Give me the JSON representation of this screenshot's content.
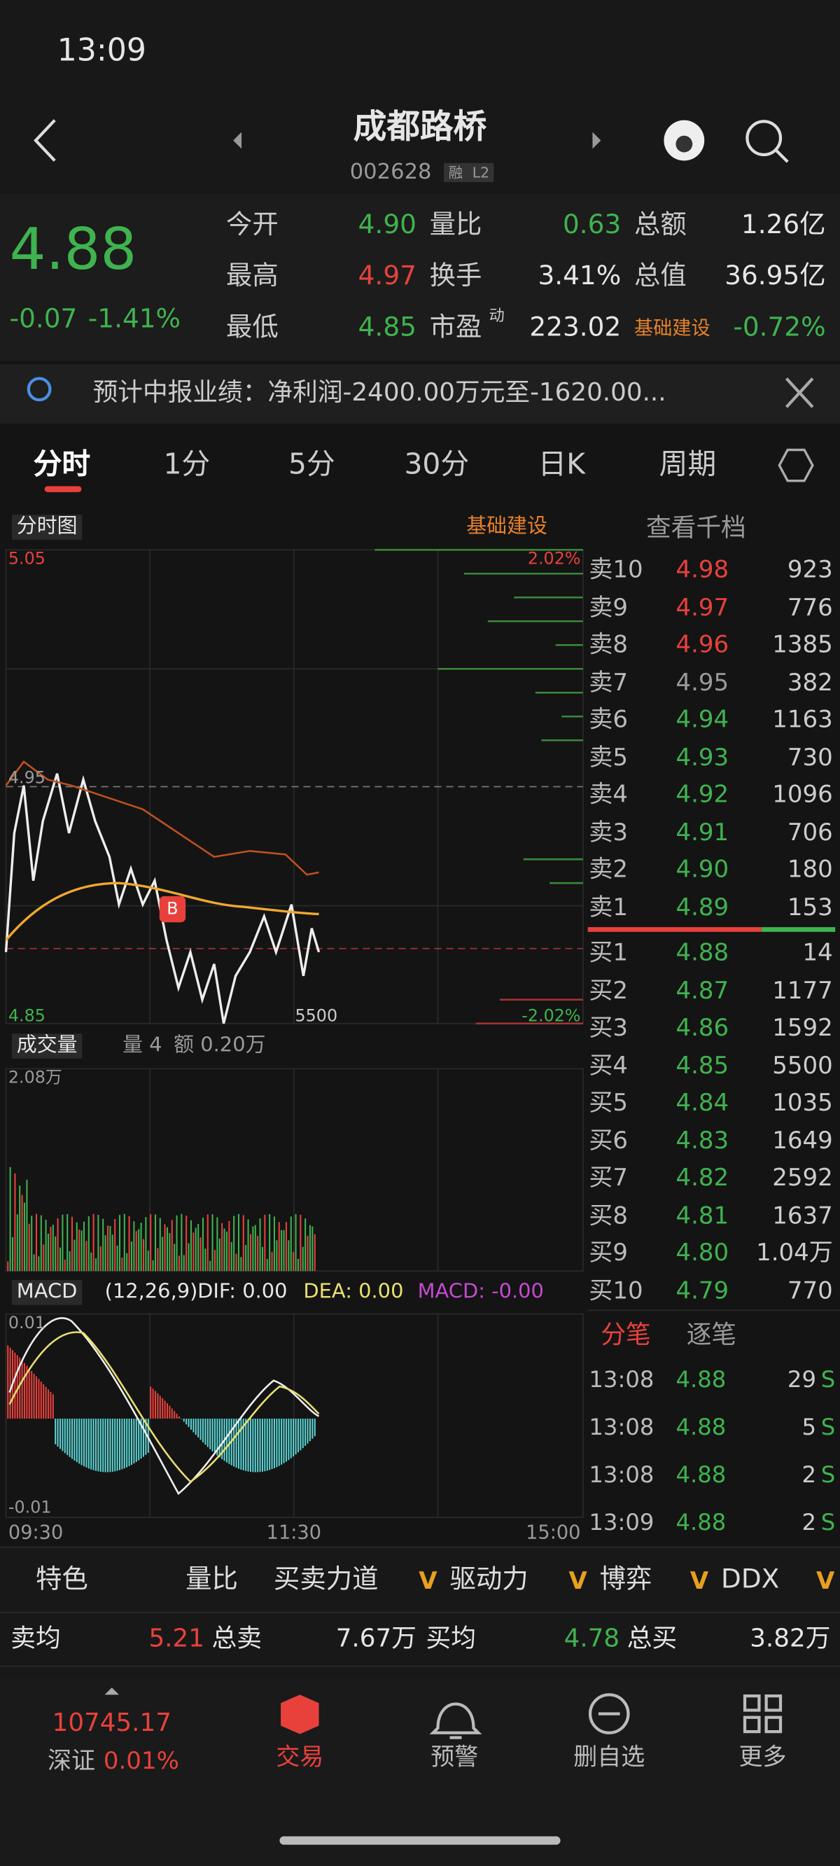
{
  "status": {
    "time": "13:09"
  },
  "header": {
    "title": "成都路桥",
    "code": "002628",
    "badges": [
      "融",
      "L2"
    ]
  },
  "quote": {
    "price": "4.88",
    "change": "-0.07",
    "change_pct": "-1.41%",
    "stats": [
      [
        {
          "label": "今开",
          "value": "4.90",
          "color": "green"
        },
        {
          "label": "量比",
          "value": "0.63",
          "color": "green"
        },
        {
          "label": "总额",
          "value": "1.26亿",
          "color": "white"
        }
      ],
      [
        {
          "label": "最高",
          "value": "4.97",
          "color": "red"
        },
        {
          "label": "换手",
          "value": "3.41%",
          "color": "white"
        },
        {
          "label": "总值",
          "value": "36.95亿",
          "color": "white"
        }
      ],
      [
        {
          "label": "最低",
          "value": "4.85",
          "color": "green"
        },
        {
          "label": "市盈",
          "sup": "动",
          "value": "223.02",
          "color": "white"
        },
        {
          "label": "基础建设",
          "value": "-0.72%",
          "color": "green"
        }
      ]
    ]
  },
  "notice": {
    "text": "预计中报业绩：净利润-2400.00万元至-1620.00..."
  },
  "tabs": [
    "分时",
    "1分",
    "5分",
    "30分",
    "日K",
    "周期"
  ],
  "chart": {
    "selector": "分时图",
    "sector": "基础建设",
    "price_high": "5.05",
    "price_mid": "4.95",
    "price_low": "4.85",
    "pct_high": "2.02%",
    "pct_low": "-2.02%",
    "max_order": "5500",
    "marker": "B",
    "volume": {
      "selector": "成交量",
      "vol": "量 4",
      "amount": "额 0.20万",
      "max": "2.08万"
    },
    "macd": {
      "selector": "MACD",
      "params": "(12,26,9)",
      "dif": "DIF: 0.00",
      "dea": "DEA: 0.00",
      "macd": "MACD: -0.00",
      "high": "0.01",
      "low": "-0.01"
    },
    "x_labels": [
      "09:30",
      "11:30",
      "15:00"
    ]
  },
  "orderbook": {
    "link": "查看千档",
    "asks": [
      {
        "label": "卖10",
        "price": "4.98",
        "volume": "923",
        "color": "red"
      },
      {
        "label": "卖9",
        "price": "4.97",
        "volume": "776",
        "color": "red"
      },
      {
        "label": "卖8",
        "price": "4.96",
        "volume": "1385",
        "color": "red"
      },
      {
        "label": "卖7",
        "price": "4.95",
        "volume": "382",
        "color": "gray"
      },
      {
        "label": "卖6",
        "price": "4.94",
        "volume": "1163",
        "color": "green"
      },
      {
        "label": "卖5",
        "price": "4.93",
        "volume": "730",
        "color": "green"
      },
      {
        "label": "卖4",
        "price": "4.92",
        "volume": "1096",
        "color": "green"
      },
      {
        "label": "卖3",
        "price": "4.91",
        "volume": "706",
        "color": "green"
      },
      {
        "label": "卖2",
        "price": "4.90",
        "volume": "180",
        "color": "green"
      },
      {
        "label": "卖1",
        "price": "4.89",
        "volume": "153",
        "color": "green"
      }
    ],
    "bids": [
      {
        "label": "买1",
        "price": "4.88",
        "volume": "14",
        "color": "green"
      },
      {
        "label": "买2",
        "price": "4.87",
        "volume": "1177",
        "color": "green"
      },
      {
        "label": "买3",
        "price": "4.86",
        "volume": "1592",
        "color": "green"
      },
      {
        "label": "买4",
        "price": "4.85",
        "volume": "5500",
        "color": "green"
      },
      {
        "label": "买5",
        "price": "4.84",
        "volume": "1035",
        "color": "green"
      },
      {
        "label": "买6",
        "price": "4.83",
        "volume": "1649",
        "color": "green"
      },
      {
        "label": "买7",
        "price": "4.82",
        "volume": "2592",
        "color": "green"
      },
      {
        "label": "买8",
        "price": "4.81",
        "volume": "1637",
        "color": "green"
      },
      {
        "label": "买9",
        "price": "4.80",
        "volume": "1.04万",
        "color": "green"
      },
      {
        "label": "买10",
        "price": "4.79",
        "volume": "770",
        "color": "green"
      }
    ]
  },
  "trades": {
    "tabs": [
      "分笔",
      "逐笔"
    ],
    "rows": [
      {
        "time": "13:08",
        "price": "4.88",
        "volume": "29",
        "side": "S"
      },
      {
        "time": "13:08",
        "price": "4.88",
        "volume": "5",
        "side": "S"
      },
      {
        "time": "13:08",
        "price": "4.88",
        "volume": "2",
        "side": "S"
      },
      {
        "time": "13:09",
        "price": "4.88",
        "volume": "2",
        "side": "S"
      }
    ]
  },
  "toolbar": {
    "badge": "V",
    "items": [
      {
        "label": "特色"
      },
      {
        "label": "量比"
      },
      {
        "label": "买卖力道"
      },
      {
        "label": "驱动力",
        "badge": true
      },
      {
        "label": "博弈",
        "badge": true
      },
      {
        "label": "DDX",
        "badge": true
      }
    ]
  },
  "summary": {
    "sell_avg_label": "卖均",
    "sell_avg": "5.21",
    "sell_total_label": "总卖",
    "sell_total": "7.67万",
    "buy_avg_label": "买均",
    "buy_avg": "4.78",
    "buy_total_label": "总买",
    "buy_total": "3.82万"
  },
  "nav": {
    "index_value": "10745.17",
    "index_name": "深证",
    "index_change": "0.01%",
    "items": [
      "交易",
      "预警",
      "删自选",
      "更多"
    ]
  }
}
